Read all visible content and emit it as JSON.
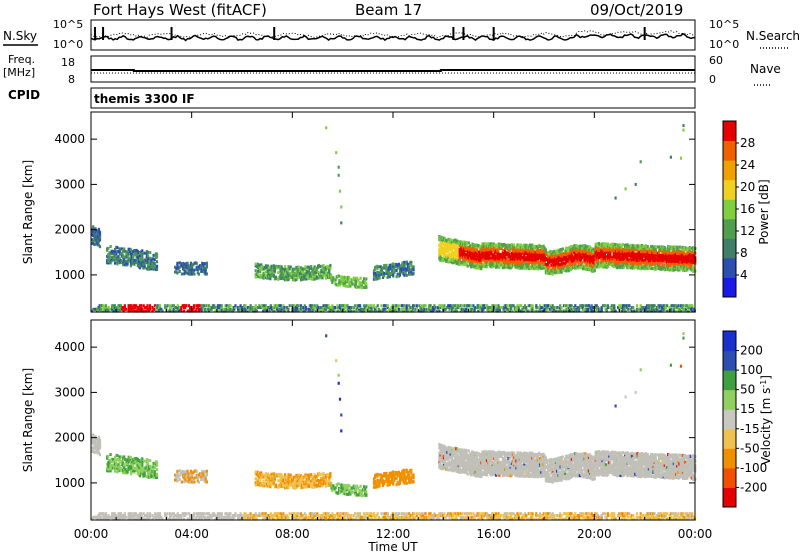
{
  "header": {
    "station": "Fort Hays West (fitACF)",
    "beam": "Beam 17",
    "date": "09/Oct/2019"
  },
  "aux": {
    "nsky_label": "N.Sky",
    "nsearch_label": "N.Search",
    "freq_label_1": "Freq.",
    "freq_label_2": "[MHz]",
    "nave_label": "Nave",
    "cpid_label": "CPID",
    "cpid_value": "themis 3300 IF",
    "noise_left_ticks": [
      "10^5",
      "10^0"
    ],
    "noise_right_ticks": [
      "10^5",
      "10^0"
    ],
    "freq_left_ticks": [
      "18",
      "8"
    ],
    "freq_right_ticks": [
      "60",
      "0"
    ]
  },
  "colors": {
    "power": [
      "#1a1ae6",
      "#2a4fb0",
      "#3f7f6a",
      "#4f9f4f",
      "#7fcf3f",
      "#f0d020",
      "#f0a000",
      "#f06000",
      "#e60000"
    ],
    "velocity": [
      "#e60000",
      "#f05000",
      "#f09000",
      "#f0c050",
      "#c8c8c0",
      "#8fd05f",
      "#3fa03f",
      "#2a4fb0",
      "#1a2fd0"
    ],
    "gsgray": "#c0c0b8"
  },
  "chart_data": [
    {
      "type": "heatmap",
      "name": "power-panel",
      "xlabel": "Time UT",
      "ylabel": "Slant Range [km]",
      "x_ticks": [
        "00:00",
        "04:00",
        "08:00",
        "12:00",
        "16:00",
        "20:00",
        "00:00"
      ],
      "xlim_hours": [
        0,
        24
      ],
      "y_ticks": [
        1000,
        2000,
        3000,
        4000
      ],
      "ylim_km": [
        180,
        4600
      ],
      "colorbar_label": "Power [dB]",
      "colorbar_ticks": [
        4,
        8,
        12,
        16,
        20,
        24,
        28
      ],
      "colorbar_range": [
        0,
        32
      ]
    },
    {
      "type": "heatmap",
      "name": "velocity-panel",
      "xlabel": "Time UT",
      "ylabel": "Slant Range [km]",
      "x_ticks": [
        "00:00",
        "04:00",
        "08:00",
        "12:00",
        "16:00",
        "20:00",
        "00:00"
      ],
      "xlim_hours": [
        0,
        24
      ],
      "y_ticks": [
        1000,
        2000,
        3000,
        4000
      ],
      "ylim_km": [
        180,
        4600
      ],
      "colorbar_label": "Velocity [m s^-1]",
      "colorbar_ticks": [
        -200,
        -100,
        -50,
        -15,
        15,
        50,
        100,
        200
      ],
      "colorbar_range": [
        -250,
        250
      ]
    }
  ]
}
